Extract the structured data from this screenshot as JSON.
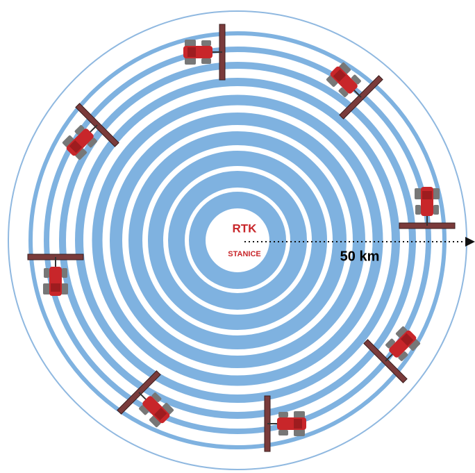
{
  "center": {
    "title": "RTK",
    "subtitle": "STANICE"
  },
  "range_label": "50 km"
}
